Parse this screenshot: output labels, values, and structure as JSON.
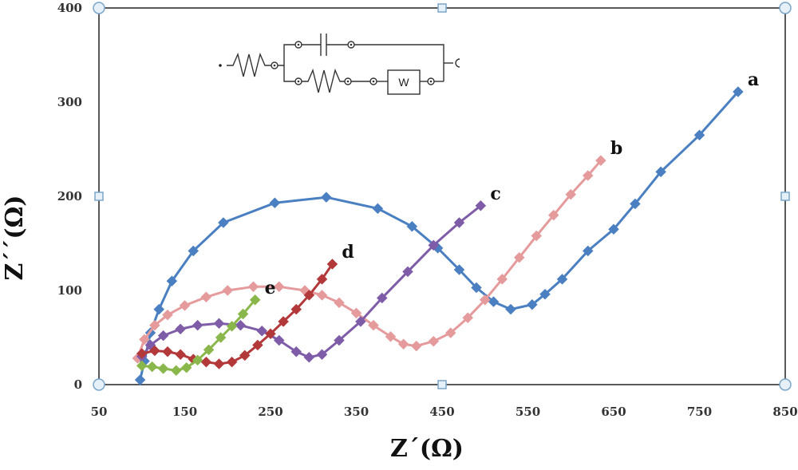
{
  "chart_data": {
    "type": "scatter",
    "title": "",
    "xlabel": "Z´(Ω)",
    "ylabel": "Z´´(Ω)",
    "xlim": [
      50,
      850
    ],
    "ylim": [
      0,
      400
    ],
    "x_ticks": [
      "50",
      "150",
      "250",
      "350",
      "450",
      "550",
      "650",
      "750",
      "850"
    ],
    "y_ticks": [
      "0",
      "100",
      "200",
      "300",
      "400"
    ],
    "grid": false,
    "legend": "none",
    "circuit_label": "W",
    "series": [
      {
        "name": "a",
        "color": "#4a7fc1",
        "x": [
          98,
          103,
          110,
          120,
          135,
          160,
          195,
          255,
          315,
          375,
          415,
          445,
          470,
          490,
          510,
          530,
          555,
          570,
          590,
          620,
          650,
          675,
          705,
          750,
          795
        ],
        "y": [
          5,
          25,
          55,
          80,
          110,
          142,
          172,
          193,
          199,
          187,
          168,
          145,
          122,
          103,
          88,
          80,
          85,
          96,
          112,
          142,
          165,
          192,
          226,
          265,
          311
        ]
      },
      {
        "name": "b",
        "color": "#e59a9c",
        "x": [
          95,
          103,
          115,
          130,
          150,
          175,
          200,
          230,
          260,
          290,
          310,
          330,
          350,
          370,
          390,
          405,
          420,
          440,
          460,
          480,
          500,
          520,
          540,
          560,
          580,
          600,
          620,
          635
        ],
        "y": [
          28,
          48,
          63,
          74,
          84,
          93,
          100,
          104,
          104,
          100,
          95,
          87,
          76,
          63,
          51,
          43,
          41,
          46,
          55,
          71,
          90,
          112,
          135,
          158,
          180,
          202,
          222,
          238
        ]
      },
      {
        "name": "c",
        "color": "#7f5ca8",
        "x": [
          100,
          110,
          125,
          145,
          165,
          190,
          215,
          240,
          260,
          280,
          295,
          310,
          330,
          355,
          380,
          410,
          440,
          470,
          495
        ],
        "y": [
          30,
          42,
          52,
          59,
          63,
          65,
          63,
          57,
          47,
          35,
          29,
          32,
          47,
          67,
          92,
          120,
          148,
          172,
          190
        ]
      },
      {
        "name": "d",
        "color": "#b2383a",
        "x": [
          100,
          115,
          130,
          145,
          160,
          175,
          190,
          205,
          220,
          235,
          250,
          265,
          280,
          295,
          310,
          322
        ],
        "y": [
          33,
          36,
          35,
          32,
          27,
          24,
          22,
          24,
          31,
          42,
          54,
          67,
          80,
          95,
          112,
          128
        ]
      },
      {
        "name": "e",
        "color": "#8ab74b",
        "x": [
          100,
          112,
          125,
          140,
          152,
          165,
          178,
          192,
          205,
          218,
          232
        ],
        "y": [
          20,
          19,
          17,
          15,
          18,
          26,
          37,
          50,
          62,
          75,
          90
        ]
      }
    ]
  }
}
